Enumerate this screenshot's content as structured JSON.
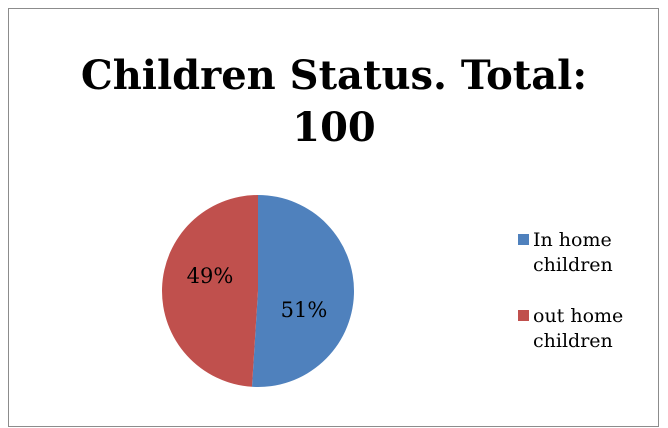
{
  "chart_data": {
    "type": "pie",
    "title": "Children Status. Total: 100",
    "categories": [
      "In home children",
      "out home children"
    ],
    "values": [
      51,
      49
    ],
    "value_labels": [
      "51%",
      "49%"
    ],
    "colors": [
      "#4f81bd",
      "#c0504d"
    ],
    "legend_position": "right",
    "legend": [
      {
        "label": "In home\nchildren",
        "color": "#4f81bd"
      },
      {
        "label": "out home\nchildren",
        "color": "#c0504d"
      }
    ]
  }
}
